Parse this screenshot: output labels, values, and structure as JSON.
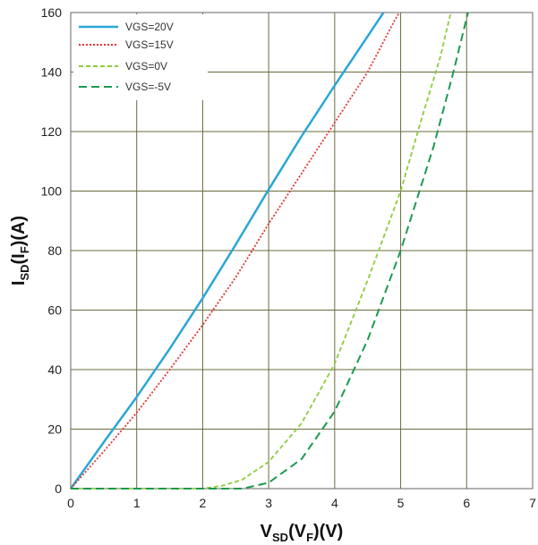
{
  "chart_data": {
    "type": "line",
    "xlabel": {
      "main": "V",
      "sub1": "SD",
      "mid": "(V",
      "sub2": "F",
      "end": ")(V)"
    },
    "ylabel": {
      "main": "I",
      "sub1": "SD",
      "mid": "(I",
      "sub2": "F",
      "end": ")(A)"
    },
    "xlim": [
      0,
      7
    ],
    "ylim": [
      0,
      160
    ],
    "xticks": [
      "0",
      "1",
      "2",
      "3",
      "4",
      "5",
      "6",
      "7"
    ],
    "yticks": [
      "0",
      "20",
      "40",
      "60",
      "80",
      "100",
      "120",
      "140",
      "160"
    ],
    "grid": true,
    "legend_position": "top-left",
    "series": [
      {
        "name": "VGS=20V",
        "color": "#2aa7d6",
        "dash": "solid",
        "points": [
          [
            0,
            0
          ],
          [
            0.5,
            15.6
          ],
          [
            1,
            30.8
          ],
          [
            1.5,
            47
          ],
          [
            2,
            64
          ],
          [
            2.5,
            82
          ],
          [
            3,
            100.5
          ],
          [
            3.5,
            118.5
          ],
          [
            4,
            135.5
          ],
          [
            4.5,
            152
          ],
          [
            4.74,
            160
          ]
        ]
      },
      {
        "name": "VGS=15V",
        "color": "#e63232",
        "dash": "dotted",
        "points": [
          [
            0,
            0
          ],
          [
            0.5,
            12.5
          ],
          [
            1,
            25.5
          ],
          [
            1.5,
            40
          ],
          [
            2,
            55
          ],
          [
            2.5,
            71
          ],
          [
            3,
            89
          ],
          [
            3.5,
            106
          ],
          [
            4,
            123
          ],
          [
            4.5,
            140
          ],
          [
            4.9,
            157
          ],
          [
            4.98,
            160
          ]
        ]
      },
      {
        "name": "VGS=0V",
        "color": "#8ccc3c",
        "dash": "short-dash",
        "points": [
          [
            0,
            0
          ],
          [
            2,
            0
          ],
          [
            2.3,
            1
          ],
          [
            2.6,
            3
          ],
          [
            3,
            9
          ],
          [
            3.5,
            22
          ],
          [
            4,
            42
          ],
          [
            4.5,
            70
          ],
          [
            5,
            100
          ],
          [
            5.3,
            123
          ],
          [
            5.6,
            145
          ],
          [
            5.76,
            160
          ]
        ]
      },
      {
        "name": "VGS=-5V",
        "color": "#1c9a50",
        "dash": "long-dash",
        "points": [
          [
            0,
            0
          ],
          [
            2.6,
            0
          ],
          [
            3,
            2
          ],
          [
            3.5,
            10
          ],
          [
            4,
            26
          ],
          [
            4.5,
            50
          ],
          [
            5,
            80
          ],
          [
            5.5,
            115
          ],
          [
            5.8,
            140
          ],
          [
            6.02,
            160
          ]
        ]
      }
    ]
  }
}
